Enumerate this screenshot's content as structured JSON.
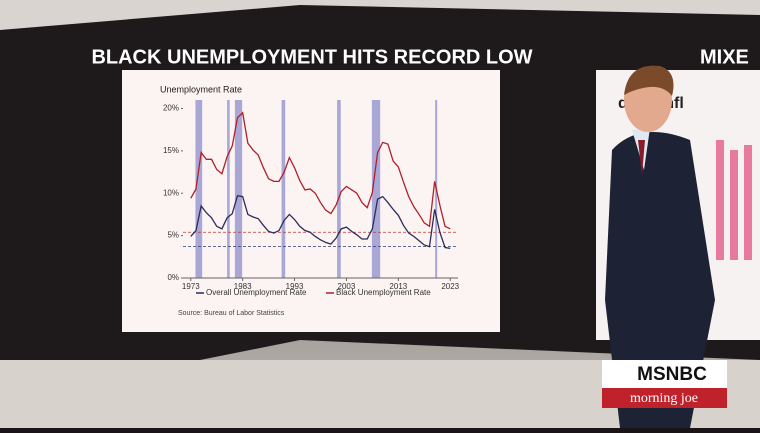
{
  "chart_data": {
    "type": "line",
    "title": "BLACK UNEMPLOYMENT HITS RECORD LOW",
    "y_label": "Unemployment Rate",
    "source": "Source: Bureau of Labor Statistics",
    "x": [
      1973,
      1974,
      1975,
      1976,
      1977,
      1978,
      1979,
      1980,
      1981,
      1982,
      1983,
      1984,
      1985,
      1986,
      1987,
      1988,
      1989,
      1990,
      1991,
      1992,
      1993,
      1994,
      1995,
      1996,
      1997,
      1998,
      1999,
      2000,
      2001,
      2002,
      2003,
      2004,
      2005,
      2006,
      2007,
      2008,
      2009,
      2010,
      2011,
      2012,
      2013,
      2014,
      2015,
      2016,
      2017,
      2018,
      2019,
      2020,
      2021,
      2022,
      2023
    ],
    "series": [
      {
        "name": "Overall Unemployment Rate",
        "color": "#2b2d5c",
        "values": [
          4.9,
          5.6,
          8.5,
          7.7,
          7.1,
          6.1,
          5.8,
          7.1,
          7.6,
          9.7,
          9.6,
          7.5,
          7.2,
          7.0,
          6.2,
          5.5,
          5.3,
          5.6,
          6.8,
          7.5,
          6.9,
          6.1,
          5.6,
          5.4,
          4.9,
          4.5,
          4.2,
          4.0,
          4.7,
          5.8,
          6.0,
          5.5,
          5.1,
          4.6,
          4.6,
          5.8,
          9.3,
          9.6,
          8.9,
          8.1,
          7.4,
          6.2,
          5.3,
          4.9,
          4.4,
          3.9,
          3.7,
          8.1,
          5.4,
          3.6,
          3.5
        ]
      },
      {
        "name": "Black Unemployment Rate",
        "color": "#b0202a",
        "values": [
          9.4,
          10.5,
          14.8,
          14.0,
          14.0,
          12.8,
          12.3,
          14.3,
          15.6,
          18.9,
          19.5,
          15.9,
          15.1,
          14.5,
          13.0,
          11.7,
          11.4,
          11.4,
          12.5,
          14.2,
          13.0,
          11.5,
          10.4,
          10.5,
          10.0,
          8.9,
          8.0,
          7.6,
          8.6,
          10.2,
          10.8,
          10.4,
          10.0,
          8.9,
          8.3,
          10.1,
          14.8,
          16.0,
          15.8,
          13.8,
          13.1,
          11.3,
          9.6,
          8.4,
          7.5,
          6.5,
          6.1,
          11.4,
          8.6,
          6.1,
          5.8
        ]
      }
    ],
    "recessions": [
      [
        1973.9,
        1975.2
      ],
      [
        1980.0,
        1980.5
      ],
      [
        1981.5,
        1982.9
      ],
      [
        1990.5,
        1991.2
      ],
      [
        2001.2,
        2001.9
      ],
      [
        2007.9,
        2009.5
      ],
      [
        2020.1,
        2020.3
      ]
    ],
    "recession_color": "#a9a7d6",
    "reference_lines": [
      {
        "value": 5.4,
        "color": "#c0392b"
      },
      {
        "value": 3.7,
        "color": "#2c3e6e"
      }
    ],
    "xlim": [
      1971.5,
      2024.5
    ],
    "xticks": [
      1973,
      1983,
      1993,
      2003,
      2013,
      2023
    ],
    "ylim": [
      0,
      21
    ],
    "yticks": [
      {
        "value": 0,
        "label": "0%"
      },
      {
        "value": 5,
        "label": "5%"
      },
      {
        "value": 10,
        "label": "10%"
      },
      {
        "value": 15,
        "label": "15%"
      },
      {
        "value": 20,
        "label": "20%"
      }
    ]
  },
  "side_screen": {
    "title": "MIXE",
    "subtitle": "dline Infl"
  },
  "logo": {
    "network": "MSNBC",
    "show": "morning joe"
  }
}
